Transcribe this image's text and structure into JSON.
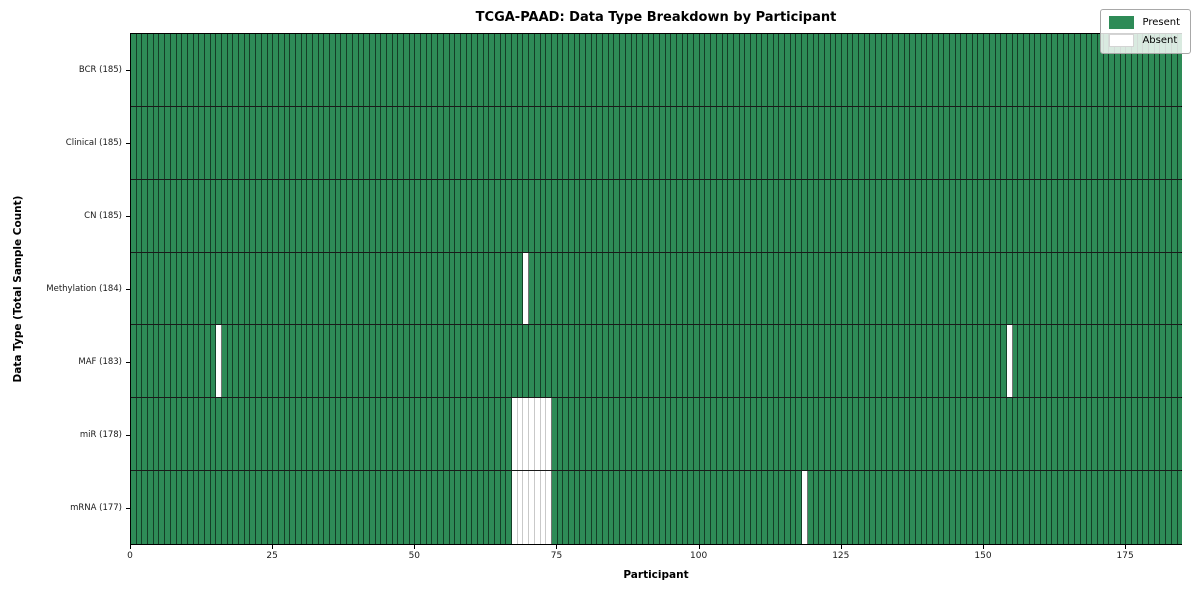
{
  "chart_data": {
    "type": "heatmap",
    "title": "TCGA-PAAD: Data Type Breakdown by Participant",
    "xlabel": "Participant",
    "ylabel": "Data Type (Total Sample Count)",
    "total_participants": 185,
    "x_range": [
      0,
      185
    ],
    "x_ticks": [
      "0",
      "25",
      "50",
      "75",
      "100",
      "125",
      "150",
      "175"
    ],
    "x_tick_values": [
      0,
      25,
      50,
      75,
      100,
      125,
      150,
      175
    ],
    "grid": false,
    "legend": {
      "position": "upper right",
      "entries": [
        {
          "label": "Present",
          "color": "#2e8b57"
        },
        {
          "label": "Absent",
          "color": "#ffffff"
        }
      ]
    },
    "rows": [
      {
        "label": "BCR (185)",
        "data_type": "BCR",
        "present_count": 185,
        "absent_participants": []
      },
      {
        "label": "Clinical (185)",
        "data_type": "Clinical",
        "present_count": 185,
        "absent_participants": []
      },
      {
        "label": "CN (185)",
        "data_type": "CN",
        "present_count": 185,
        "absent_participants": []
      },
      {
        "label": "Methylation (184)",
        "data_type": "Methylation",
        "present_count": 184,
        "absent_participants": [
          69
        ]
      },
      {
        "label": "MAF (183)",
        "data_type": "MAF",
        "present_count": 183,
        "absent_participants": [
          15,
          154
        ]
      },
      {
        "label": "miR (178)",
        "data_type": "miR",
        "present_count": 178,
        "absent_participants": [
          67,
          68,
          69,
          70,
          71,
          72,
          73
        ]
      },
      {
        "label": "mRNA (177)",
        "data_type": "mRNA",
        "present_count": 177,
        "absent_participants": [
          67,
          68,
          69,
          70,
          71,
          72,
          73,
          118
        ]
      }
    ],
    "colors": {
      "present": "#2e8b57",
      "absent": "#ffffff",
      "cell_edge_dark": "rgba(0,0,0,0.55)",
      "cell_edge_light": "#c9c9c9",
      "background": "#ffffff"
    }
  }
}
